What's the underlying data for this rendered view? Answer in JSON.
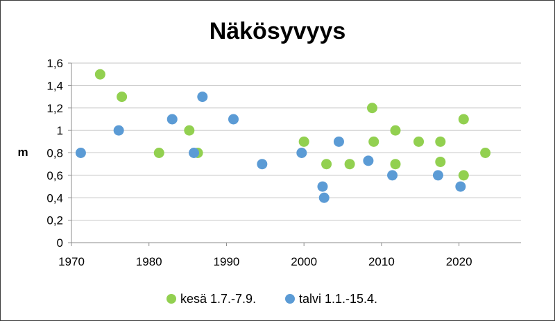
{
  "chart_data": {
    "type": "scatter",
    "title": "Näkösyvyys",
    "ylabel": "m",
    "xlabel": "",
    "xlim": [
      1970,
      2028
    ],
    "ylim": [
      0,
      1.6
    ],
    "x_ticks": [
      "1970",
      "1980",
      "1990",
      "2000",
      "2010",
      "2020"
    ],
    "y_ticks": [
      "0",
      "0,2",
      "0,4",
      "0,6",
      "0,8",
      "1",
      "1,2",
      "1,4",
      "1,6"
    ],
    "grid": true,
    "legend_position": "bottom",
    "series": [
      {
        "name": "kesä 1.7.-7.9.",
        "color": "#92d050",
        "points": [
          [
            1973.7,
            1.5
          ],
          [
            1976.5,
            1.3
          ],
          [
            1981.3,
            0.8
          ],
          [
            1985.2,
            1.0
          ],
          [
            1986.3,
            0.8
          ],
          [
            2000,
            0.9
          ],
          [
            2002.9,
            0.7
          ],
          [
            2005.9,
            0.7
          ],
          [
            2008.8,
            1.2
          ],
          [
            2009,
            0.9
          ],
          [
            2011.8,
            1.0
          ],
          [
            2011.8,
            0.7
          ],
          [
            2014.8,
            0.9
          ],
          [
            2017.6,
            0.9
          ],
          [
            2017.6,
            0.72
          ],
          [
            2020.6,
            1.1
          ],
          [
            2020.6,
            0.6
          ],
          [
            2023.4,
            0.8
          ]
        ]
      },
      {
        "name": "talvi 1.1.-15.4.",
        "color": "#5b9bd5",
        "points": [
          [
            1971.2,
            0.8
          ],
          [
            1976.1,
            1.0
          ],
          [
            1983,
            1.1
          ],
          [
            1985.8,
            0.8
          ],
          [
            1986.9,
            1.3
          ],
          [
            1990.9,
            1.1
          ],
          [
            1994.6,
            0.7
          ],
          [
            1999.7,
            0.8
          ],
          [
            2002.4,
            0.5
          ],
          [
            2002.6,
            0.4
          ],
          [
            2004.5,
            0.9
          ],
          [
            2008.3,
            0.73
          ],
          [
            2011.4,
            0.6
          ],
          [
            2017.3,
            0.6
          ],
          [
            2020.2,
            0.5
          ]
        ]
      }
    ]
  }
}
